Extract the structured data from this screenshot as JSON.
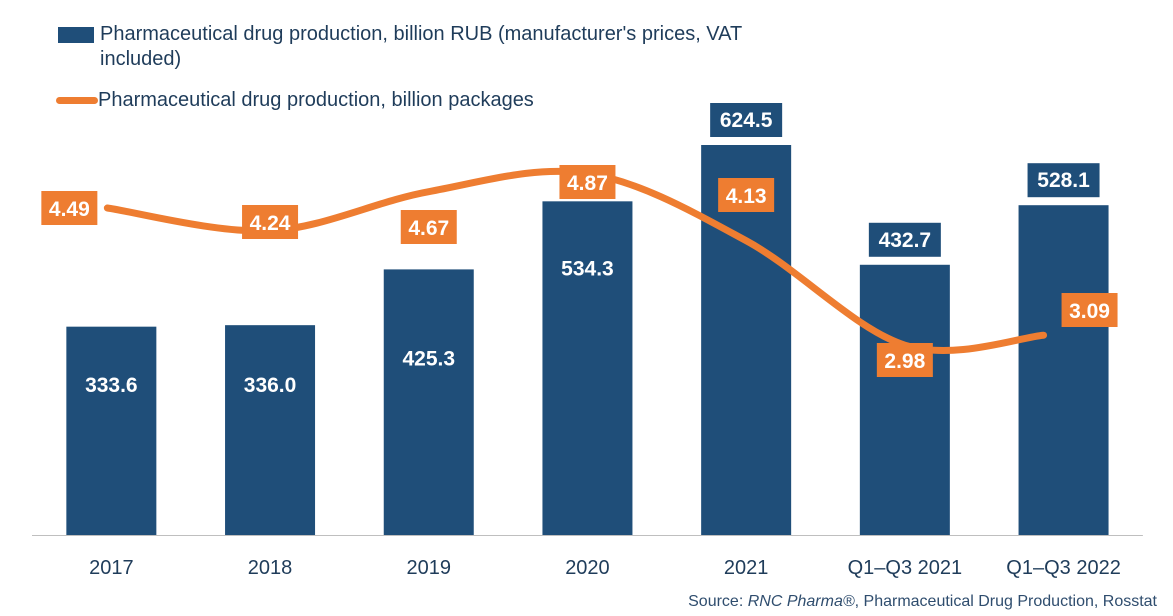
{
  "chart_data": {
    "type": "bar",
    "categories": [
      "2017",
      "2018",
      "2019",
      "2020",
      "2021",
      "Q1–Q3 2021",
      "Q1–Q3 2022"
    ],
    "series": [
      {
        "name": "Pharmaceutical drug production, billion RUB (manufacturer's prices, VAT included)",
        "type": "bar",
        "values": [
          333.6,
          336.0,
          425.3,
          534.3,
          624.5,
          432.7,
          528.1
        ],
        "labels": [
          "333.6",
          "336.0",
          "425.3",
          "534.3",
          "624.5",
          "432.7",
          "528.1"
        ],
        "color": "#1f4e79"
      },
      {
        "name": "Pharmaceutical drug production, billion packages",
        "type": "line",
        "values": [
          4.49,
          4.24,
          4.67,
          4.87,
          4.13,
          2.98,
          3.09
        ],
        "labels": [
          "4.49",
          "4.24",
          "4.67",
          "4.87",
          "4.13",
          "2.98",
          "3.09"
        ],
        "color": "#ee7d31"
      }
    ],
    "legend": [
      "Pharmaceutical drug production, billion RUB (manufacturer's prices, VAT",
      "included)",
      "Pharmaceutical drug production, billion packages"
    ],
    "legend_position": "top-left",
    "grid": false
  },
  "source": {
    "prefix": "Source: ",
    "brand": "RNC Pharma®",
    "rest": ", Pharmaceutical Drug Production, Rosstat"
  }
}
